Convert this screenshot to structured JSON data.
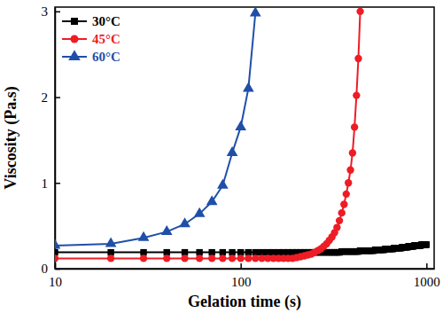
{
  "chart_data": {
    "type": "line",
    "x_label": "Gelation time (s)",
    "y_label": "Viscosity (Pa.s)",
    "log": "x",
    "legend": "upper left",
    "xlim": [
      10,
      1100
    ],
    "xticks": [
      10,
      100,
      1000
    ],
    "ylim": [
      0,
      3.05
    ],
    "yticks": [
      0,
      1,
      2,
      3
    ],
    "series": [
      {
        "name": "30°C",
        "color": "#000000",
        "marker": "square",
        "line_style": "solid",
        "x": [
          10,
          20,
          30,
          40,
          50,
          60,
          70,
          80,
          90,
          100,
          110,
          120,
          130,
          140,
          150,
          160,
          170,
          180,
          190,
          200,
          210,
          220,
          230,
          240,
          250,
          260,
          270,
          280,
          290,
          300,
          310,
          320,
          330,
          340,
          350,
          360,
          370,
          380,
          390,
          400,
          410,
          420,
          430,
          440,
          450,
          460,
          470,
          480,
          490,
          500,
          510,
          520,
          530,
          540,
          550,
          560,
          570,
          580,
          590,
          600,
          610,
          620,
          630,
          640,
          650,
          660,
          670,
          680,
          690,
          700,
          710,
          720,
          730,
          740,
          750,
          760,
          770,
          780,
          790,
          800,
          810,
          820,
          830,
          840,
          850,
          860,
          870,
          880,
          890,
          900,
          910,
          920,
          930,
          940,
          950,
          960,
          970,
          980,
          990,
          1000
        ],
        "values": [
          0.19,
          0.19,
          0.19,
          0.19,
          0.19,
          0.19,
          0.19,
          0.19,
          0.19,
          0.19,
          0.19,
          0.19,
          0.19,
          0.19,
          0.19,
          0.19,
          0.19,
          0.19,
          0.19,
          0.19,
          0.19,
          0.19,
          0.19,
          0.19,
          0.19,
          0.19,
          0.19,
          0.19,
          0.19,
          0.19,
          0.19,
          0.19,
          0.19,
          0.19,
          0.2,
          0.2,
          0.2,
          0.2,
          0.2,
          0.2,
          0.2,
          0.2,
          0.2,
          0.21,
          0.21,
          0.21,
          0.21,
          0.21,
          0.21,
          0.21,
          0.21,
          0.21,
          0.22,
          0.22,
          0.22,
          0.22,
          0.22,
          0.22,
          0.22,
          0.23,
          0.23,
          0.23,
          0.23,
          0.23,
          0.23,
          0.23,
          0.24,
          0.24,
          0.24,
          0.24,
          0.24,
          0.24,
          0.24,
          0.25,
          0.25,
          0.25,
          0.25,
          0.25,
          0.25,
          0.26,
          0.26,
          0.26,
          0.26,
          0.26,
          0.26,
          0.27,
          0.27,
          0.27,
          0.27,
          0.27,
          0.27,
          0.27,
          0.27,
          0.28,
          0.28,
          0.28,
          0.28,
          0.28,
          0.28,
          0.28
        ]
      },
      {
        "name": "45°C",
        "color": "#ee1c25",
        "marker": "circle",
        "line_style": "solid",
        "x": [
          10,
          20,
          30,
          40,
          50,
          60,
          70,
          80,
          90,
          100,
          110,
          120,
          130,
          140,
          150,
          160,
          170,
          180,
          190,
          200,
          210,
          220,
          230,
          240,
          250,
          260,
          270,
          280,
          290,
          300,
          310,
          320,
          330,
          340,
          350,
          360,
          370,
          380,
          390,
          400,
          410,
          420,
          430,
          440
        ],
        "values": [
          0.12,
          0.12,
          0.12,
          0.12,
          0.12,
          0.12,
          0.12,
          0.12,
          0.12,
          0.12,
          0.12,
          0.12,
          0.12,
          0.12,
          0.12,
          0.12,
          0.12,
          0.12,
          0.12,
          0.13,
          0.14,
          0.15,
          0.16,
          0.17,
          0.19,
          0.21,
          0.23,
          0.26,
          0.29,
          0.33,
          0.37,
          0.42,
          0.48,
          0.56,
          0.65,
          0.75,
          0.87,
          1.0,
          1.15,
          1.35,
          1.65,
          2.02,
          2.45,
          3.0
        ]
      },
      {
        "name": "60°C",
        "color": "#1f4fa8",
        "marker": "triangle",
        "line_style": "solid",
        "x": [
          10,
          20,
          30,
          40,
          50,
          60,
          70,
          80,
          90,
          100,
          110,
          120
        ],
        "values": [
          0.27,
          0.29,
          0.36,
          0.43,
          0.52,
          0.64,
          0.78,
          0.97,
          1.35,
          1.65,
          2.1,
          2.98
        ]
      }
    ]
  }
}
